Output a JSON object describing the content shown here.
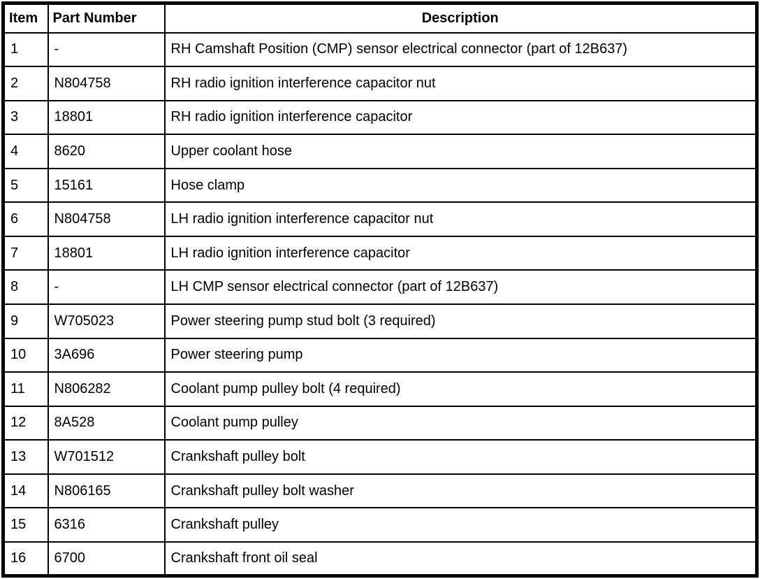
{
  "table": {
    "columns": [
      {
        "key": "item",
        "label": "Item"
      },
      {
        "key": "part_number",
        "label": "Part Number"
      },
      {
        "key": "description",
        "label": "Description"
      }
    ],
    "rows": [
      {
        "item": "1",
        "part_number": "-",
        "description": "RH Camshaft Position (CMP) sensor electrical connector (part of 12B637)"
      },
      {
        "item": "2",
        "part_number": "N804758",
        "description": "RH radio ignition interference capacitor nut"
      },
      {
        "item": "3",
        "part_number": "18801",
        "description": "RH radio ignition interference capacitor"
      },
      {
        "item": "4",
        "part_number": "8620",
        "description": "Upper coolant hose"
      },
      {
        "item": "5",
        "part_number": "15161",
        "description": "Hose clamp"
      },
      {
        "item": "6",
        "part_number": "N804758",
        "description": "LH radio ignition interference capacitor nut"
      },
      {
        "item": "7",
        "part_number": "18801",
        "description": "LH radio ignition interference capacitor"
      },
      {
        "item": "8",
        "part_number": "-",
        "description": "LH CMP sensor electrical connector (part of 12B637)"
      },
      {
        "item": "9",
        "part_number": "W705023",
        "description": "Power steering pump stud bolt (3 required)"
      },
      {
        "item": "10",
        "part_number": "3A696",
        "description": "Power steering pump"
      },
      {
        "item": "11",
        "part_number": "N806282",
        "description": "Coolant pump pulley bolt (4 required)"
      },
      {
        "item": "12",
        "part_number": "8A528",
        "description": "Coolant pump pulley"
      },
      {
        "item": "13",
        "part_number": "W701512",
        "description": "Crankshaft pulley bolt"
      },
      {
        "item": "14",
        "part_number": "N806165",
        "description": "Crankshaft pulley bolt washer"
      },
      {
        "item": "15",
        "part_number": "6316",
        "description": "Crankshaft pulley"
      },
      {
        "item": "16",
        "part_number": "6700",
        "description": "Crankshaft front oil seal"
      }
    ],
    "colors": {
      "border": "#000000",
      "background": "#ffffff",
      "text": "#000000"
    }
  }
}
